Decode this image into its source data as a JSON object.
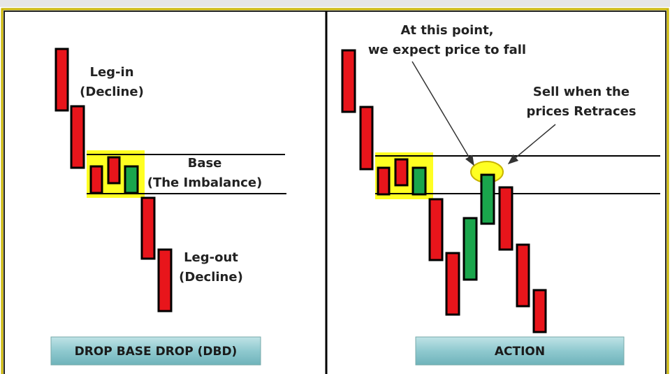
{
  "left": {
    "leg_in": [
      "Leg-in",
      "(Decline)"
    ],
    "base": [
      "Base",
      "(The Imbalance)"
    ],
    "leg_out": [
      "Leg-out",
      "(Decline)"
    ],
    "caption": "DROP BASE DROP (DBD)"
  },
  "right": {
    "annotation_1": [
      "At this point,",
      "we expect price to fall"
    ],
    "annotation_2": [
      "Sell when the",
      "prices Retraces"
    ],
    "caption": "ACTION"
  }
}
